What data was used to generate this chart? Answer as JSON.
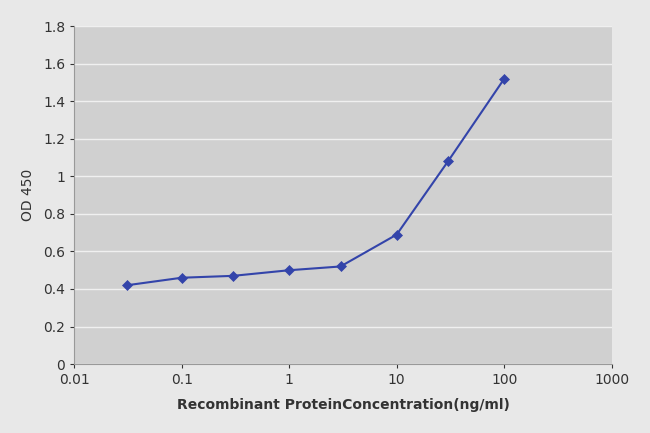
{
  "x": [
    0.031,
    0.1,
    0.3,
    1.0,
    3.0,
    10.0,
    30.0,
    100.0
  ],
  "y": [
    0.42,
    0.46,
    0.47,
    0.5,
    0.52,
    0.69,
    1.08,
    1.52
  ],
  "line_color": "#3344aa",
  "marker": "D",
  "marker_size": 5,
  "xlabel": "Recombinant ProteinConcentration(ng/ml)",
  "ylabel": "OD 450",
  "ylim": [
    0,
    1.8
  ],
  "yticks": [
    0,
    0.2,
    0.4,
    0.6,
    0.8,
    1.0,
    1.2,
    1.4,
    1.6,
    1.8
  ],
  "ytick_labels": [
    "0",
    "0.2",
    "0.4",
    "0.6",
    "0.8",
    "1",
    "1.2",
    "1.4",
    "1.6",
    "1.8"
  ],
  "xlim_log": [
    0.01,
    1000
  ],
  "xticks_log": [
    0.01,
    0.1,
    1,
    10,
    100,
    1000
  ],
  "xticklabels": [
    "0.01",
    "0.1",
    "1",
    "10",
    "100",
    "1000"
  ],
  "fig_bg_color": "#e8e8e8",
  "plot_bg_color": "#d0d0d0",
  "grid_color": "#f0f0f0",
  "spine_color": "#999999",
  "text_color": "#333333",
  "label_fontsize": 10,
  "tick_fontsize": 10
}
